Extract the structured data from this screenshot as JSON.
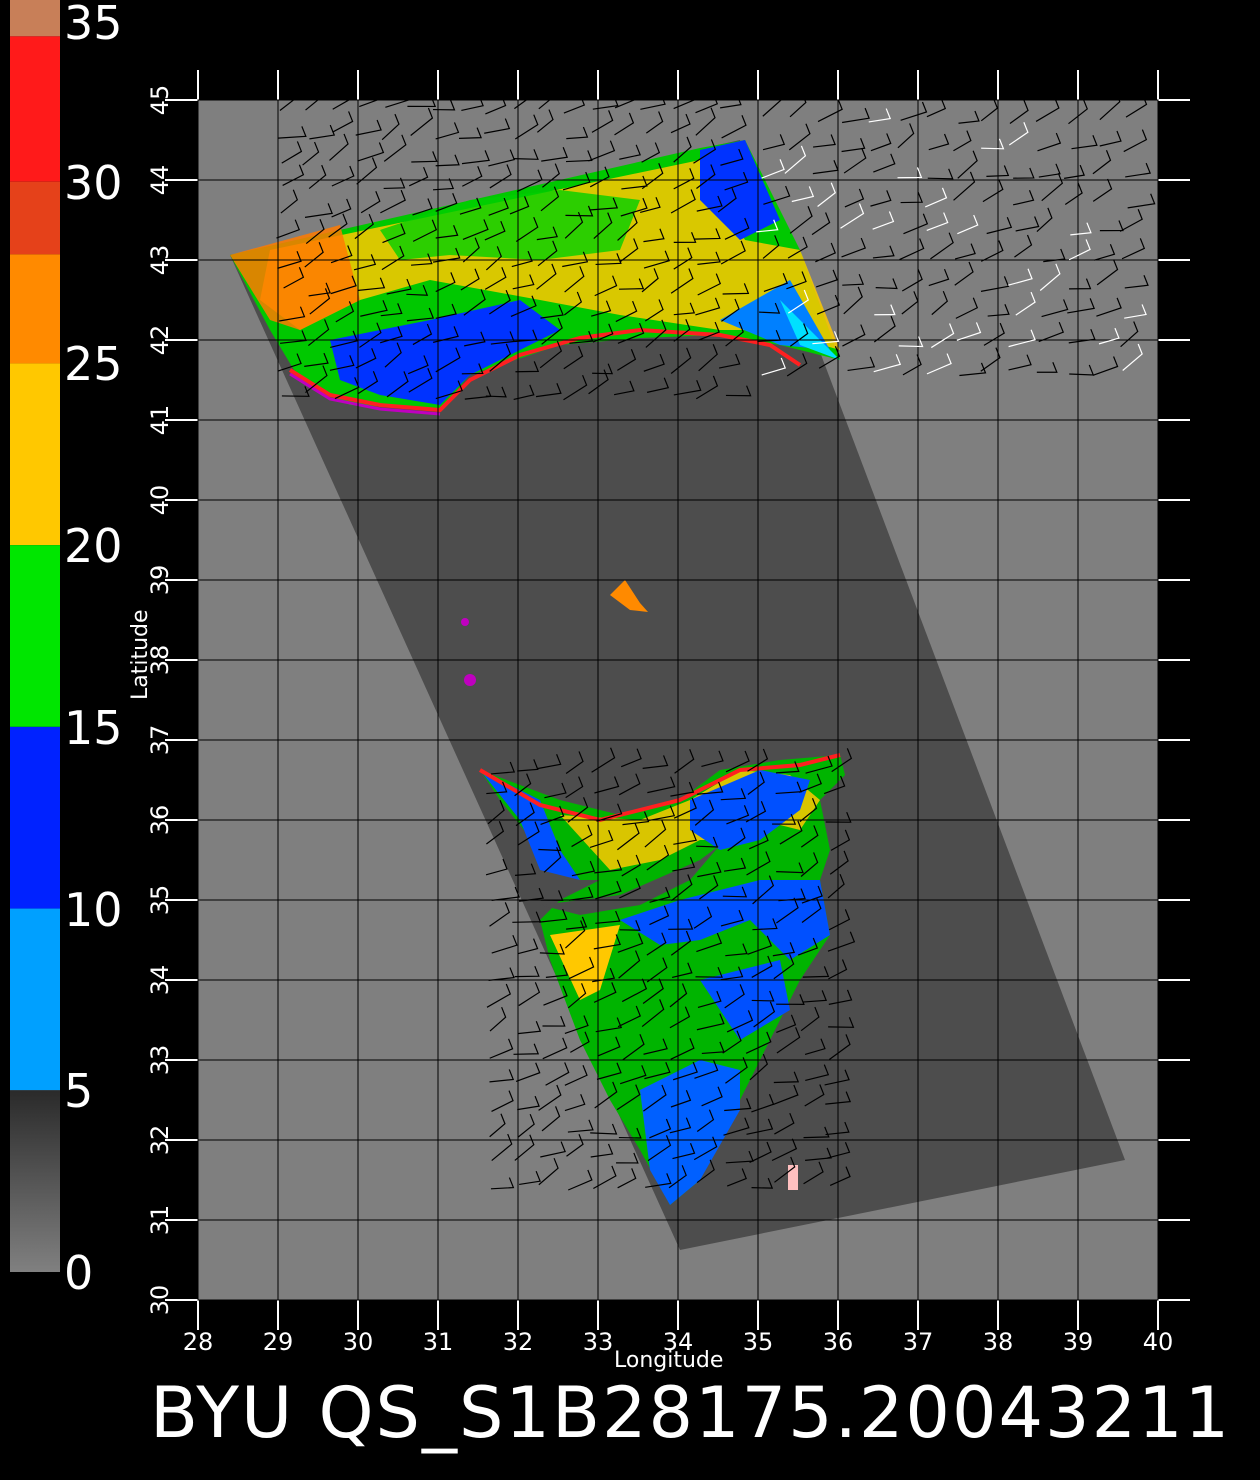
{
  "colorbar": {
    "labels": [
      "35",
      "30",
      "25",
      "20",
      "15",
      "10",
      "5",
      "0"
    ],
    "stops": [
      {
        "color": "#c87f58",
        "from": 35,
        "to": 34
      },
      {
        "color": "#ff1a1a",
        "from": 34,
        "to": 30
      },
      {
        "color": "#e5411a",
        "from": 30,
        "to": 28
      },
      {
        "color": "#ff8a00",
        "from": 28,
        "to": 25
      },
      {
        "color": "#ffc800",
        "from": 25,
        "to": 20
      },
      {
        "color": "#00e600",
        "from": 20,
        "to": 15
      },
      {
        "color": "#0022ff",
        "from": 15,
        "to": 10
      },
      {
        "color": "#00a0ff",
        "from": 10,
        "to": 5
      },
      {
        "color": "#808080",
        "from": 5,
        "to": 0
      }
    ]
  },
  "axes": {
    "x_label": "Longitude",
    "y_label": "Latitude",
    "x_ticks": [
      "28",
      "29",
      "30",
      "31",
      "32",
      "33",
      "34",
      "35",
      "36",
      "37",
      "38",
      "39",
      "40"
    ],
    "y_ticks": [
      "30",
      "31",
      "32",
      "33",
      "34",
      "35",
      "36",
      "37",
      "38",
      "39",
      "40",
      "41",
      "42",
      "43",
      "44",
      "45"
    ],
    "lon_range": [
      28,
      40
    ],
    "lat_range": [
      30,
      45
    ]
  },
  "footer": {
    "title": "BYU  QS_S1B28175.20043211"
  },
  "colors": {
    "background": "#000000",
    "land": "#7f7f7f",
    "swath": "#4d4d4d",
    "grid": "#000000",
    "wind_barb_dark": "#000000",
    "wind_barb_light": "#ffffff"
  }
}
